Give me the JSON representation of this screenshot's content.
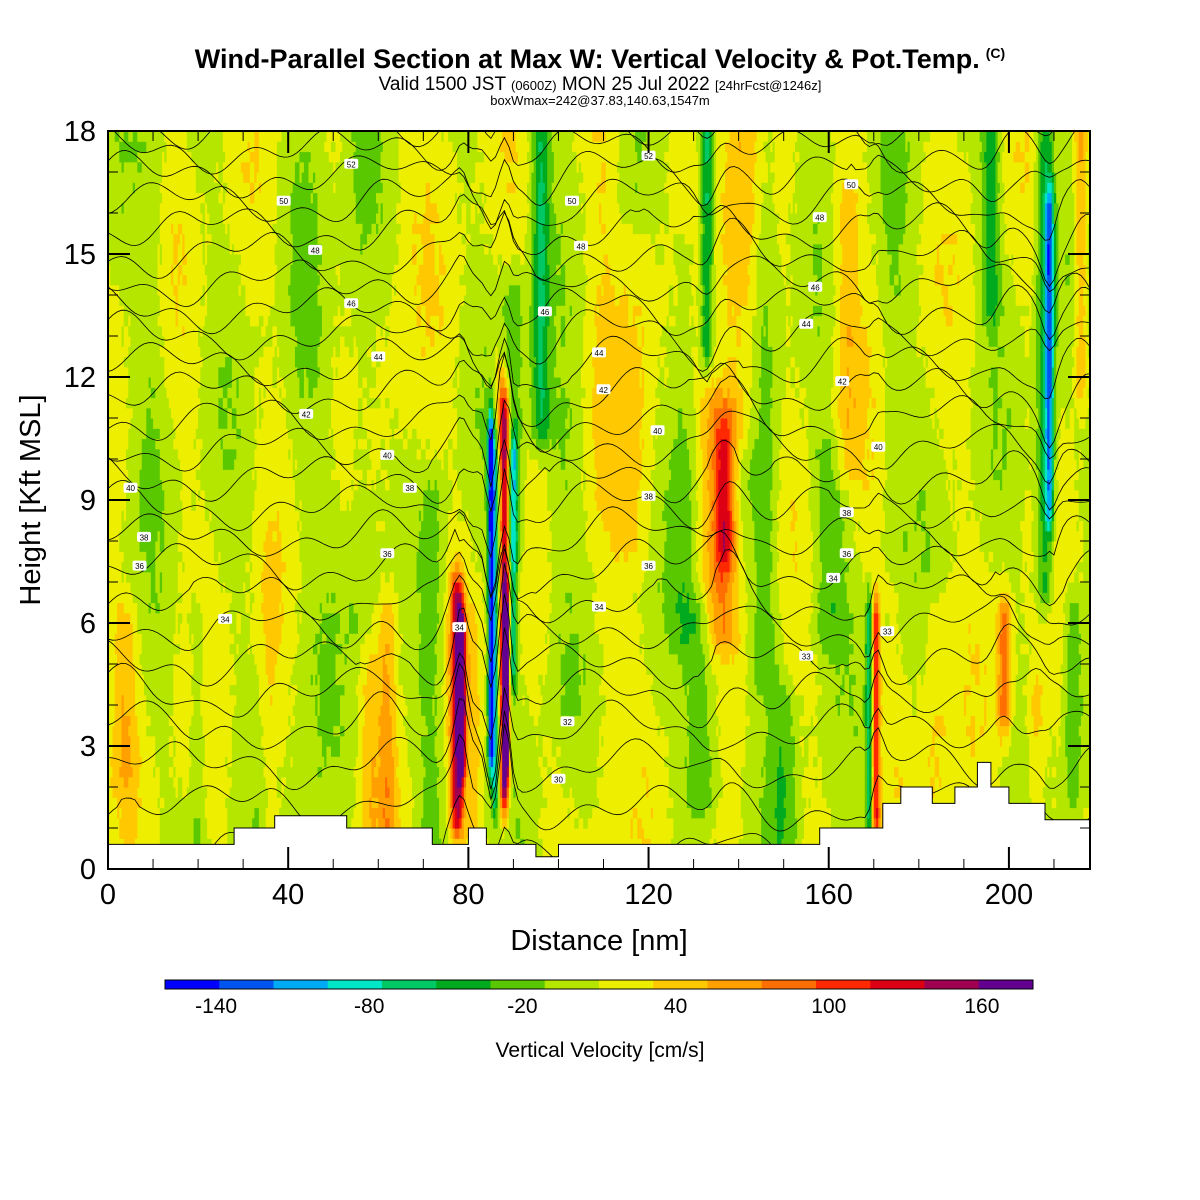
{
  "header": {
    "title": "Wind-Parallel Section at Max W: Vertical Velocity & Pot.Temp.",
    "copyright": "(C)",
    "valid_prefix": "Valid 1500 JST",
    "valid_utc": "(0600Z)",
    "valid_date": "MON 25 Jul 2022",
    "forecast": "[24hrFcst@1246z]",
    "boxwmax": "boxWmax=242@37.83,140.63,1547m"
  },
  "chart_data": {
    "type": "heatmap",
    "xlabel": "Distance [nm]",
    "ylabel": "Height [Kft MSL]",
    "xlim": [
      0,
      218
    ],
    "ylim": [
      0,
      18
    ],
    "x_ticks": [
      0,
      40,
      80,
      120,
      160,
      200
    ],
    "y_ticks": [
      0,
      3,
      6,
      9,
      12,
      15,
      18
    ],
    "grid": false,
    "colorbar": {
      "label": "Vertical Velocity [cm/s]",
      "orientation": "horizontal",
      "position": "bottom",
      "min": -160,
      "max": 180,
      "step": 20,
      "tick_labels": [
        -140,
        -80,
        -20,
        40,
        100,
        160
      ],
      "colors": [
        "#0000ff",
        "#0055ee",
        "#00aaf5",
        "#00e6c8",
        "#00c864",
        "#00aa1e",
        "#5ac800",
        "#b4e600",
        "#eeee00",
        "#ffc800",
        "#ffa000",
        "#ff6e00",
        "#ff2800",
        "#dc0014",
        "#a00050",
        "#640090"
      ]
    },
    "background_velocity": 0,
    "velocity_features": [
      {
        "x": 4,
        "z0": 2.5,
        "z1": 6,
        "w": 3,
        "v": 30
      },
      {
        "x": 10,
        "z0": 9,
        "z1": 18,
        "w": 3,
        "v": -15
      },
      {
        "x": 20,
        "z0": 0.6,
        "z1": 6,
        "w": 2,
        "v": -25
      },
      {
        "x": 36,
        "z0": 0.8,
        "z1": 7,
        "w": 2,
        "v": 20
      },
      {
        "x": 44,
        "z0": 1,
        "z1": 18,
        "w": 5,
        "v": -10
      },
      {
        "x": 56,
        "z0": 6,
        "z1": 18,
        "w": 4,
        "v": -20
      },
      {
        "x": 58,
        "z0": 1.5,
        "z1": 5,
        "w": 2,
        "v": 25
      },
      {
        "x": 62,
        "z0": 1.2,
        "z1": 6,
        "w": 2,
        "v": 40
      },
      {
        "x": 66,
        "z0": 6,
        "z1": 18,
        "w": 5,
        "v": 10
      },
      {
        "x": 72,
        "z0": 1,
        "z1": 9,
        "w": 3,
        "v": -25
      },
      {
        "x": 77.5,
        "z0": 1.5,
        "z1": 6.5,
        "w": 1.5,
        "v": 120
      },
      {
        "x": 78.5,
        "z0": 3,
        "z1": 5.5,
        "w": 0.8,
        "v": 150
      },
      {
        "x": 81,
        "z0": 1,
        "z1": 6,
        "w": 1.5,
        "v": 20
      },
      {
        "x": 85,
        "z0": 3,
        "z1": 10.5,
        "w": 0.7,
        "v": -130
      },
      {
        "x": 86,
        "z0": 2,
        "z1": 10,
        "w": 0.9,
        "v": -70
      },
      {
        "x": 88,
        "z0": 2,
        "z1": 11,
        "w": 1.1,
        "v": 140
      },
      {
        "x": 88.3,
        "z0": 3,
        "z1": 6,
        "w": 0.6,
        "v": 165
      },
      {
        "x": 90,
        "z0": 5,
        "z1": 10,
        "w": 0.9,
        "v": -80
      },
      {
        "x": 87,
        "z0": 10.5,
        "z1": 12,
        "w": 1.5,
        "v": 40
      },
      {
        "x": 90,
        "z0": 8,
        "z1": 14,
        "w": 3,
        "v": -30
      },
      {
        "x": 96,
        "z0": 11,
        "z1": 18,
        "w": 2,
        "v": -60
      },
      {
        "x": 100,
        "z0": 4,
        "z1": 11,
        "w": 4,
        "v": -20
      },
      {
        "x": 110,
        "z0": 1,
        "z1": 18,
        "w": 4,
        "v": 15
      },
      {
        "x": 118,
        "z0": 8,
        "z1": 15,
        "w": 4,
        "v": 20
      },
      {
        "x": 128,
        "z0": 6,
        "z1": 15,
        "w": 3,
        "v": -25
      },
      {
        "x": 132,
        "z0": 2,
        "z1": 6,
        "w": 4,
        "v": -40
      },
      {
        "x": 136,
        "z0": 6,
        "z1": 11,
        "w": 4,
        "v": 55
      },
      {
        "x": 137,
        "z0": 8,
        "z1": 10,
        "w": 2,
        "v": 70
      },
      {
        "x": 140,
        "z0": 11,
        "z1": 18,
        "w": 5,
        "v": 35
      },
      {
        "x": 133,
        "z0": 13,
        "z1": 18,
        "w": 1.5,
        "v": -70
      },
      {
        "x": 146,
        "z0": 5,
        "z1": 18,
        "w": 3,
        "v": -30
      },
      {
        "x": 150,
        "z0": 1,
        "z1": 4,
        "w": 3,
        "v": -30
      },
      {
        "x": 160,
        "z0": 6,
        "z1": 10,
        "w": 4,
        "v": -30
      },
      {
        "x": 164,
        "z0": 10,
        "z1": 16,
        "w": 3,
        "v": 35
      },
      {
        "x": 169,
        "z0": 1.5,
        "z1": 6,
        "w": 0.8,
        "v": -70
      },
      {
        "x": 170.5,
        "z0": 1.5,
        "z1": 6,
        "w": 0.9,
        "v": 100
      },
      {
        "x": 174,
        "z0": 8,
        "z1": 18,
        "w": 3,
        "v": -15
      },
      {
        "x": 184,
        "z0": 2,
        "z1": 6,
        "w": 3,
        "v": 25
      },
      {
        "x": 196,
        "z0": 14,
        "z1": 18,
        "w": 2,
        "v": -50
      },
      {
        "x": 199,
        "z0": 4,
        "z1": 6,
        "w": 1.5,
        "v": 70
      },
      {
        "x": 206,
        "z0": 2,
        "z1": 4,
        "w": 2,
        "v": 30
      },
      {
        "x": 208,
        "z0": 7,
        "z1": 18,
        "w": 2,
        "v": -60
      },
      {
        "x": 209,
        "z0": 9,
        "z1": 16,
        "w": 1,
        "v": -90
      },
      {
        "x": 214,
        "z0": 2,
        "z1": 6,
        "w": 2,
        "v": -35
      },
      {
        "x": 216,
        "z0": 12,
        "z1": 18,
        "w": 1.5,
        "v": 50
      }
    ],
    "terrain": {
      "x": [
        0,
        28,
        28,
        37,
        37,
        53,
        53,
        72,
        72,
        80,
        80,
        84,
        84,
        95,
        95,
        100,
        100,
        158,
        158,
        172,
        172,
        176,
        176,
        180,
        180,
        183,
        183,
        188,
        188,
        193,
        193,
        196,
        196,
        200,
        200,
        203,
        203,
        208,
        208,
        218
      ],
      "z": [
        0.6,
        0.6,
        1.0,
        1.0,
        1.3,
        1.3,
        1.0,
        1.0,
        0.6,
        0.6,
        1.0,
        1.0,
        0.6,
        0.6,
        0.3,
        0.3,
        0.6,
        0.6,
        1.0,
        1.0,
        1.6,
        1.6,
        2.0,
        2.0,
        2.0,
        2.0,
        1.6,
        1.6,
        2.0,
        2.0,
        2.6,
        2.6,
        2.0,
        2.0,
        1.6,
        1.6,
        1.6,
        1.6,
        1.2,
        1.2
      ]
    },
    "potential_temperature_contours": {
      "interval": 1,
      "min": 29,
      "max": 53,
      "labels": [
        {
          "x": 54,
          "z": 17.2,
          "text": "52"
        },
        {
          "x": 120,
          "z": 17.4,
          "text": "52"
        },
        {
          "x": 39,
          "z": 16.3,
          "text": "50"
        },
        {
          "x": 103,
          "z": 16.3,
          "text": "50"
        },
        {
          "x": 165,
          "z": 16.7,
          "text": "50"
        },
        {
          "x": 46,
          "z": 15.1,
          "text": "48"
        },
        {
          "x": 105,
          "z": 15.2,
          "text": "48"
        },
        {
          "x": 158,
          "z": 15.9,
          "text": "48"
        },
        {
          "x": 54,
          "z": 13.8,
          "text": "46"
        },
        {
          "x": 97,
          "z": 13.6,
          "text": "46"
        },
        {
          "x": 157,
          "z": 14.2,
          "text": "46"
        },
        {
          "x": 60,
          "z": 12.5,
          "text": "44"
        },
        {
          "x": 109,
          "z": 12.6,
          "text": "44"
        },
        {
          "x": 155,
          "z": 13.3,
          "text": "44"
        },
        {
          "x": 44,
          "z": 11.1,
          "text": "42"
        },
        {
          "x": 110,
          "z": 11.7,
          "text": "42"
        },
        {
          "x": 163,
          "z": 11.9,
          "text": "42"
        },
        {
          "x": 5,
          "z": 9.3,
          "text": "40"
        },
        {
          "x": 62,
          "z": 10.1,
          "text": "40"
        },
        {
          "x": 122,
          "z": 10.7,
          "text": "40"
        },
        {
          "x": 171,
          "z": 10.3,
          "text": "40"
        },
        {
          "x": 67,
          "z": 9.3,
          "text": "38"
        },
        {
          "x": 120,
          "z": 9.1,
          "text": "38"
        },
        {
          "x": 164,
          "z": 8.7,
          "text": "38"
        },
        {
          "x": 8,
          "z": 8.1,
          "text": "38"
        },
        {
          "x": 62,
          "z": 7.7,
          "text": "36"
        },
        {
          "x": 7,
          "z": 7.4,
          "text": "36"
        },
        {
          "x": 120,
          "z": 7.4,
          "text": "36"
        },
        {
          "x": 164,
          "z": 7.7,
          "text": "36"
        },
        {
          "x": 26,
          "z": 6.1,
          "text": "34"
        },
        {
          "x": 109,
          "z": 6.4,
          "text": "34"
        },
        {
          "x": 161,
          "z": 7.1,
          "text": "34"
        },
        {
          "x": 78,
          "z": 5.9,
          "text": "34"
        },
        {
          "x": 155,
          "z": 5.2,
          "text": "33"
        },
        {
          "x": 173,
          "z": 5.8,
          "text": "33"
        },
        {
          "x": 102,
          "z": 3.6,
          "text": "32"
        },
        {
          "x": 100,
          "z": 2.2,
          "text": "30"
        }
      ]
    }
  }
}
